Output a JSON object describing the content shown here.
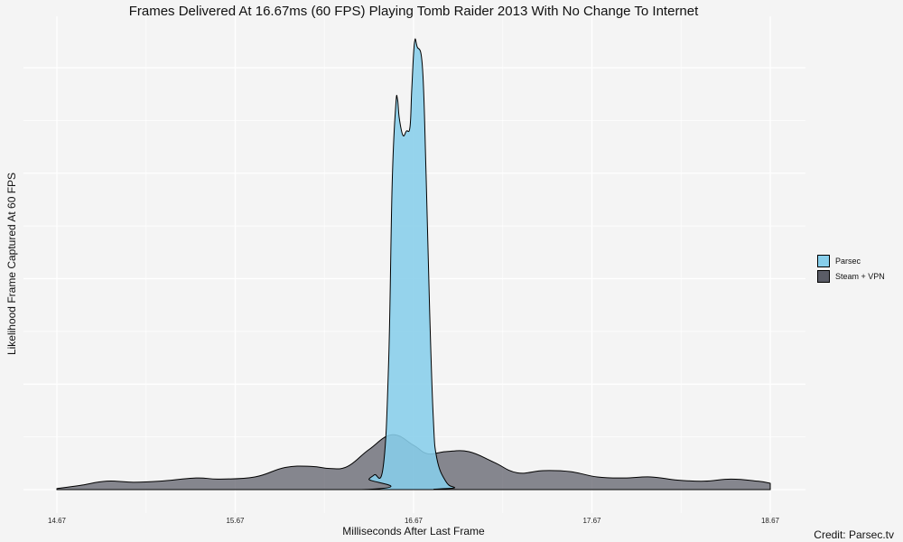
{
  "chart_data": {
    "type": "area",
    "title": "Frames Delivered At 16.67ms (60 FPS) Playing Tomb Raider 2013 With No Change To Internet",
    "xlabel": "Milliseconds After Last Frame",
    "ylabel": "Likelihood Frame Captured At 60 FPS",
    "xlim": [
      14.67,
      18.67
    ],
    "ylim": [
      0,
      2.15
    ],
    "x_ticks": [
      "14.67",
      "15.67",
      "16.67",
      "17.67",
      "18.67"
    ],
    "x_tick_values": [
      14.67,
      15.67,
      16.67,
      17.67,
      18.67
    ],
    "y_gridlines": [
      0,
      0.5,
      1.0,
      1.5,
      2.0
    ],
    "grid": true,
    "legend_position": "right",
    "series": [
      {
        "name": "Steam + VPN",
        "color": "#5a5c66",
        "x": [
          14.67,
          14.8,
          14.95,
          15.1,
          15.25,
          15.45,
          15.58,
          15.78,
          15.95,
          16.1,
          16.2,
          16.3,
          16.42,
          16.55,
          16.67,
          16.75,
          16.85,
          16.98,
          17.12,
          17.25,
          17.4,
          17.55,
          17.7,
          17.85,
          18.0,
          18.15,
          18.3,
          18.45,
          18.6,
          18.67
        ],
        "values": [
          0.005,
          0.02,
          0.04,
          0.035,
          0.04,
          0.055,
          0.05,
          0.06,
          0.105,
          0.11,
          0.1,
          0.11,
          0.19,
          0.26,
          0.21,
          0.17,
          0.18,
          0.18,
          0.13,
          0.08,
          0.09,
          0.085,
          0.06,
          0.055,
          0.06,
          0.045,
          0.04,
          0.05,
          0.04,
          0.03
        ]
      },
      {
        "name": "Parsec",
        "color": "#87ceeb",
        "x": [
          14.67,
          16.38,
          16.42,
          16.45,
          16.5,
          16.53,
          16.55,
          16.57,
          16.58,
          16.59,
          16.61,
          16.63,
          16.65,
          16.66,
          16.675,
          16.69,
          16.72,
          16.74,
          16.76,
          16.78,
          16.8,
          16.85,
          16.9,
          16.95,
          18.67
        ],
        "values": [
          0,
          0.0,
          0.05,
          0.07,
          0.11,
          0.6,
          1.45,
          1.82,
          1.85,
          1.76,
          1.68,
          1.7,
          1.72,
          1.9,
          2.12,
          2.1,
          2.0,
          1.5,
          0.85,
          0.35,
          0.15,
          0.04,
          0.01,
          0.0,
          0
        ]
      }
    ]
  },
  "credit": "Credit: Parsec.tv"
}
